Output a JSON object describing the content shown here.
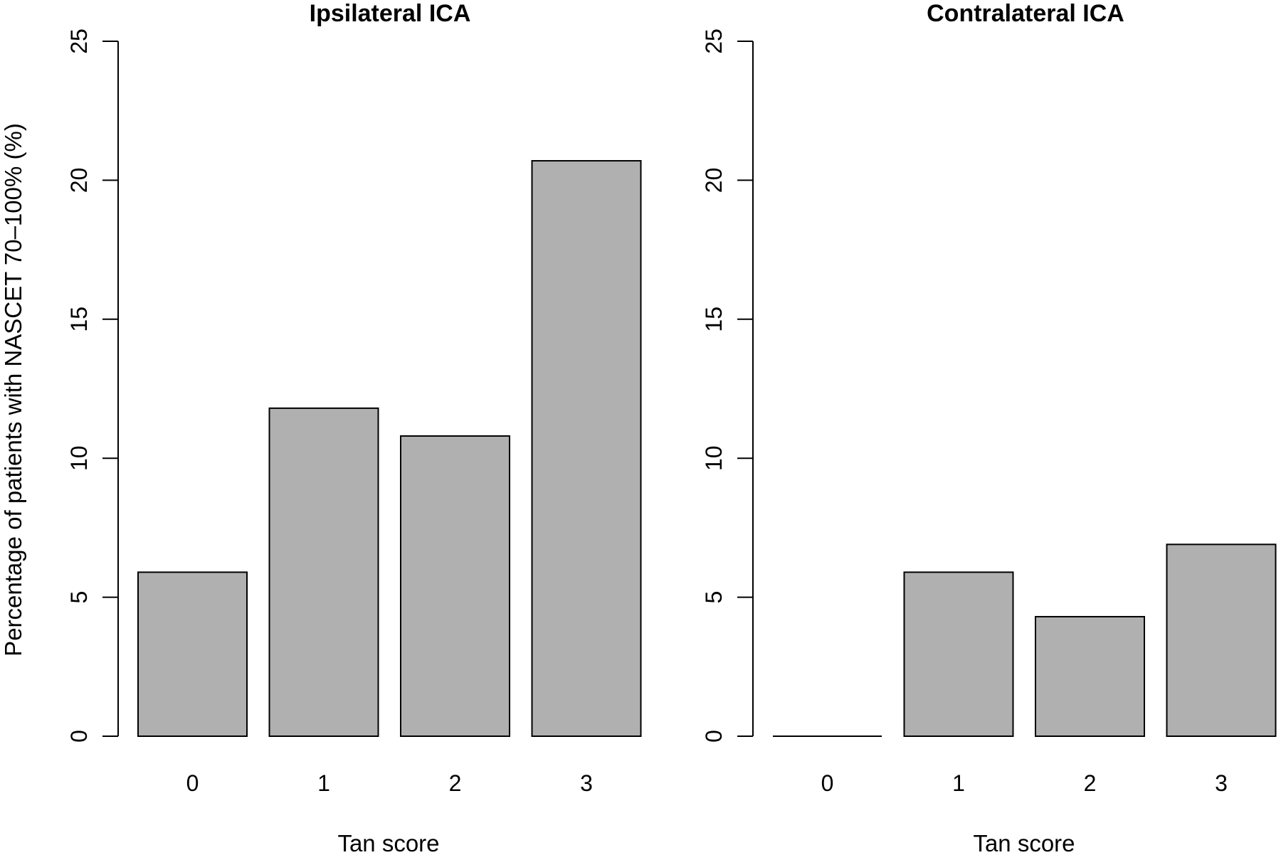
{
  "chart_data": [
    {
      "type": "bar",
      "title": "Ipsilateral ICA",
      "xlabel": "Tan score",
      "ylabel": "Percentage of patients with NASCET 70–100% (%)",
      "categories": [
        "0",
        "1",
        "2",
        "3"
      ],
      "values": [
        5.9,
        11.8,
        10.8,
        20.7
      ],
      "ylim": [
        0,
        25
      ],
      "yticks": [
        "0",
        "5",
        "10",
        "15",
        "20",
        "25"
      ],
      "grid": false,
      "bar_color": "#b0b0b0"
    },
    {
      "type": "bar",
      "title": "Contralateral ICA",
      "xlabel": "Tan score",
      "ylabel": "",
      "categories": [
        "0",
        "1",
        "2",
        "3"
      ],
      "values": [
        0,
        5.9,
        4.3,
        6.9
      ],
      "ylim": [
        0,
        25
      ],
      "yticks": [
        "0",
        "5",
        "10",
        "15",
        "20",
        "25"
      ],
      "grid": false,
      "bar_color": "#b0b0b0"
    }
  ]
}
